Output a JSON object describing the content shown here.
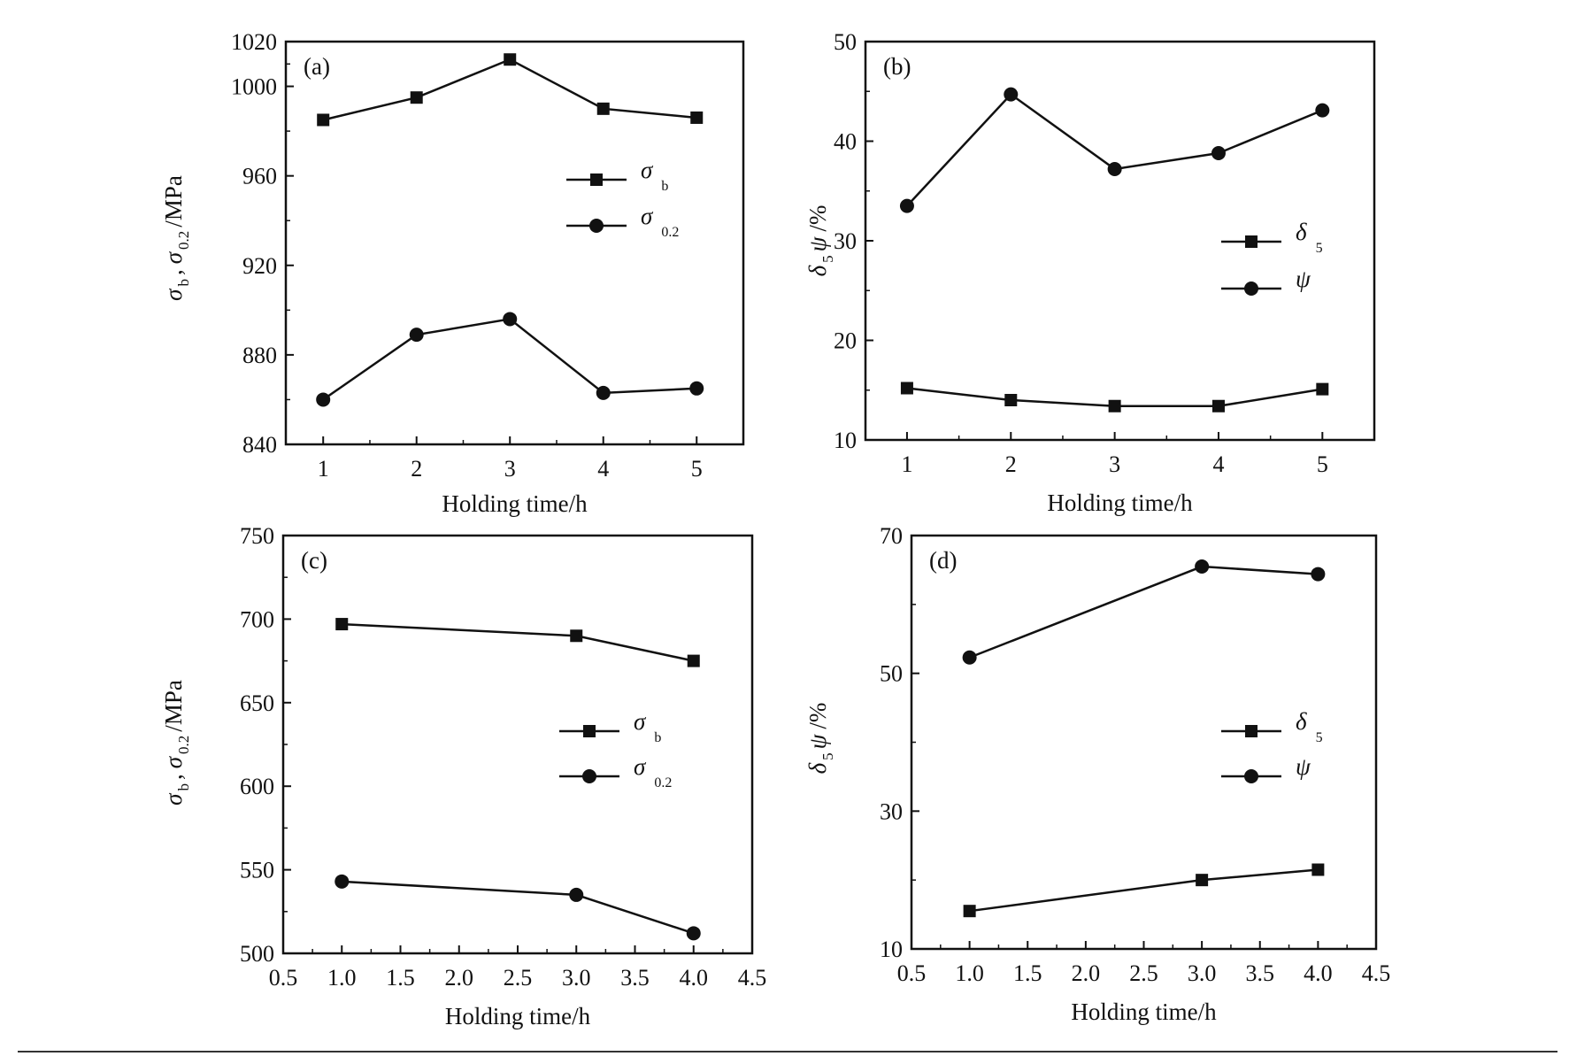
{
  "chart_data": [
    {
      "type": "line",
      "panel_label": "(a)",
      "xlabel": "Holding time/h",
      "ylabel": "σ b, σ 0.2/MPa",
      "ylabel_parts": {
        "s1": "σ",
        "sub1": "b",
        "comma": ",",
        "s2": "σ",
        "sub2": "0.2",
        "unit": "/MPa"
      },
      "xlim": [
        0.6,
        5.5
      ],
      "ylim": [
        840,
        1020
      ],
      "xticks": [
        1,
        2,
        3,
        4,
        5
      ],
      "xtick_labels": [
        "1",
        "2",
        "3",
        "4",
        "5"
      ],
      "yticks": [
        840,
        880,
        920,
        960,
        1000,
        1020
      ],
      "ytick_labels": [
        "840",
        "880",
        "920",
        "960",
        "1000",
        "1020"
      ],
      "legend_position": "right-middle",
      "series": [
        {
          "name": "σ b",
          "legend_symbol": "σ",
          "legend_sub": "b",
          "marker": "square",
          "x": [
            1,
            2,
            3,
            4,
            5
          ],
          "values": [
            985,
            995,
            1012,
            990,
            986
          ]
        },
        {
          "name": "σ 0.2",
          "legend_symbol": "σ",
          "legend_sub": "0.2",
          "marker": "circle",
          "x": [
            1,
            2,
            3,
            4,
            5
          ],
          "values": [
            860,
            889,
            896,
            863,
            865
          ]
        }
      ]
    },
    {
      "type": "line",
      "panel_label": "(b)",
      "xlabel": "Holding time/h",
      "ylabel": "δ 5 ψ/%",
      "ylabel_parts": {
        "s1": "δ",
        "sub1": "5",
        "comma": "",
        "s2": "ψ",
        "sub2": "",
        "unit": "/%"
      },
      "xlim": [
        0.6,
        5.5
      ],
      "ylim": [
        10,
        50
      ],
      "xticks": [
        1,
        2,
        3,
        4,
        5
      ],
      "xtick_labels": [
        "1",
        "2",
        "3",
        "4",
        "5"
      ],
      "yticks": [
        10,
        20,
        30,
        40,
        50
      ],
      "ytick_labels": [
        "10",
        "20",
        "30",
        "40",
        "50"
      ],
      "legend_position": "right-middle",
      "series": [
        {
          "name": "δ 5",
          "legend_symbol": "δ",
          "legend_sub": "5",
          "marker": "square",
          "x": [
            1,
            2,
            3,
            4,
            5
          ],
          "values": [
            15.2,
            14.0,
            13.4,
            13.4,
            15.1
          ]
        },
        {
          "name": "ψ",
          "legend_symbol": "ψ",
          "legend_sub": "",
          "marker": "circle",
          "x": [
            1,
            2,
            3,
            4,
            5
          ],
          "values": [
            33.5,
            44.7,
            37.2,
            38.8,
            43.1
          ]
        }
      ]
    },
    {
      "type": "line",
      "panel_label": "(c)",
      "xlabel": "Holding time/h",
      "ylabel": "σ b, σ 0.2/MPa",
      "ylabel_parts": {
        "s1": "σ",
        "sub1": "b",
        "comma": ",",
        "s2": "σ",
        "sub2": "0.2",
        "unit": "/MPa"
      },
      "xlim": [
        0.5,
        4.5
      ],
      "ylim": [
        500,
        750
      ],
      "xticks": [
        0.5,
        1.0,
        1.5,
        2.0,
        2.5,
        3.0,
        3.5,
        4.0,
        4.5
      ],
      "xtick_labels": [
        "0.5",
        "1.0",
        "1.5",
        "2.0",
        "2.5",
        "3.0",
        "3.5",
        "4.0",
        "4.5"
      ],
      "yticks": [
        500,
        550,
        600,
        650,
        700,
        750
      ],
      "ytick_labels": [
        "500",
        "550",
        "600",
        "650",
        "700",
        "750"
      ],
      "legend_position": "right-middle",
      "series": [
        {
          "name": "σ b",
          "legend_symbol": "σ",
          "legend_sub": "b",
          "marker": "square",
          "x": [
            1.0,
            3.0,
            4.0
          ],
          "values": [
            697,
            690,
            675
          ]
        },
        {
          "name": "σ 0.2",
          "legend_symbol": "σ",
          "legend_sub": "0.2",
          "marker": "circle",
          "x": [
            1.0,
            3.0,
            4.0
          ],
          "values": [
            543,
            535,
            512
          ]
        }
      ]
    },
    {
      "type": "line",
      "panel_label": "(d)",
      "xlabel": "Holding time/h",
      "ylabel": "δ 5 ψ/%",
      "ylabel_parts": {
        "s1": "δ",
        "sub1": "5",
        "comma": "",
        "s2": "ψ",
        "sub2": "",
        "unit": "/%"
      },
      "xlim": [
        0.5,
        4.5
      ],
      "ylim": [
        10,
        70
      ],
      "xticks": [
        0.5,
        1.0,
        1.5,
        2.0,
        2.5,
        3.0,
        3.5,
        4.0,
        4.5
      ],
      "xtick_labels": [
        "0.5",
        "1.0",
        "1.5",
        "2.0",
        "2.5",
        "3.0",
        "3.5",
        "4.0",
        "4.5"
      ],
      "yticks": [
        10,
        30,
        50,
        70
      ],
      "ytick_labels": [
        "10",
        "30",
        "50",
        "70"
      ],
      "legend_position": "right-middle",
      "series": [
        {
          "name": "δ 5",
          "legend_symbol": "δ",
          "legend_sub": "5",
          "marker": "square",
          "x": [
            1.0,
            3.0,
            4.0
          ],
          "values": [
            15.5,
            20.0,
            21.5
          ]
        },
        {
          "name": "ψ",
          "legend_symbol": "ψ",
          "legend_sub": "",
          "marker": "circle",
          "x": [
            1.0,
            3.0,
            4.0
          ],
          "values": [
            52.3,
            65.5,
            64.4
          ]
        }
      ]
    }
  ]
}
